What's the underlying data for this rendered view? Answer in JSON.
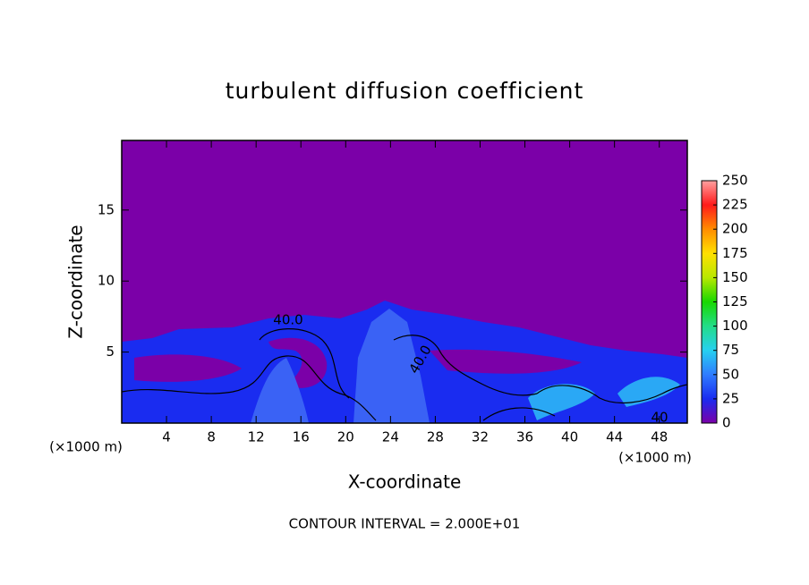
{
  "chart_data": {
    "type": "field",
    "title": "turbulent diffusion coefficient",
    "x_label": "X-coordinate",
    "y_label": "Z-coordinate",
    "x_unit_labels": [
      "(×1000 m)",
      "(×1000 m)"
    ],
    "footer": "CONTOUR INTERVAL = 2.000E+01",
    "contour_labels": [
      "40.0",
      "40.0",
      "40"
    ],
    "xlim": [
      0,
      50.5
    ],
    "xticks": [
      4,
      8,
      12,
      16,
      20,
      24,
      28,
      32,
      36,
      40,
      44,
      48
    ],
    "ylim": [
      0,
      19.9
    ],
    "yticks": [
      5,
      10,
      15
    ],
    "clim": [
      0,
      250
    ],
    "cticks": [
      0,
      25,
      50,
      75,
      100,
      125,
      150,
      175,
      200,
      225,
      250
    ],
    "colorbar_colors": [
      "#7b00a8",
      "#1a2cf0",
      "#2f7cff",
      "#26d0f0",
      "#22dd88",
      "#18d800",
      "#b8e800",
      "#ffe000",
      "#ff8c00",
      "#ff1a1a",
      "#ffa0a0"
    ]
  }
}
